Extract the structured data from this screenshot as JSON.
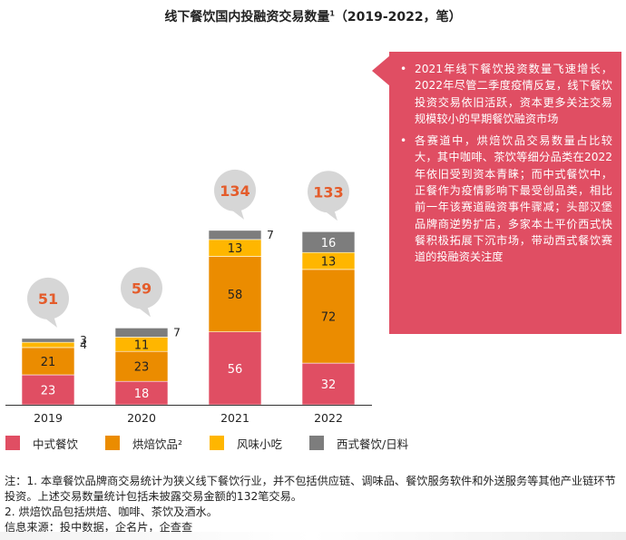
{
  "title": "线下餐饮国内投融资交易数量",
  "title_sup": "1",
  "title_suffix": "（2019-2022，笔）",
  "chart_data": {
    "type": "bar",
    "stacked": true,
    "categories": [
      "2019",
      "2020",
      "2021",
      "2022"
    ],
    "series": [
      {
        "name": "中式餐饮",
        "color": "#e04e63",
        "values": [
          23,
          18,
          56,
          32
        ]
      },
      {
        "name": "烘焙饮品²",
        "color": "#eb8c00",
        "values": [
          21,
          23,
          58,
          72
        ]
      },
      {
        "name": "风味小吃",
        "color": "#ffb600",
        "values": [
          4,
          11,
          13,
          13
        ]
      },
      {
        "name": "西式餐饮/日料",
        "color": "#7d7d7d",
        "values": [
          3,
          7,
          7,
          16
        ]
      }
    ],
    "totals": [
      51,
      59,
      134,
      133
    ],
    "total_color": "#e45c2b",
    "legend_position": "bottom",
    "grid": false
  },
  "callout": {
    "bullets": [
      "2021年线下餐饮投资数量飞速增长，2022年尽管二季度疫情反复，线下餐饮投资交易依旧活跃，资本更多关注交易规模较小的早期餐饮融资市场",
      "各赛道中，烘焙饮品交易数量占比较大，其中咖啡、茶饮等细分品类在2022年依旧受到资本青睐；而中式餐饮中，正餐作为疫情影响下最受创品类，相比前一年该赛道融资事件骤减；头部汉堡品牌商逆势扩店，多家本土平价西式快餐积极拓展下沉市场，带动西式餐饮赛道的投融资关注度"
    ],
    "bullet_symbol": "•"
  },
  "notes": [
    "注：1. 本章餐饮品牌商交易统计为狭义线下餐饮行业，并不包括供应链、调味品、餐饮服务软件和外送服务等其他产业链环节投资。上述交易数量统计包括未披露交易金额的132笔交易。",
    "2. 烘焙饮品包括烘焙、咖啡、茶饮及酒水。",
    "信息来源：投中数据，企名片，企查查"
  ]
}
